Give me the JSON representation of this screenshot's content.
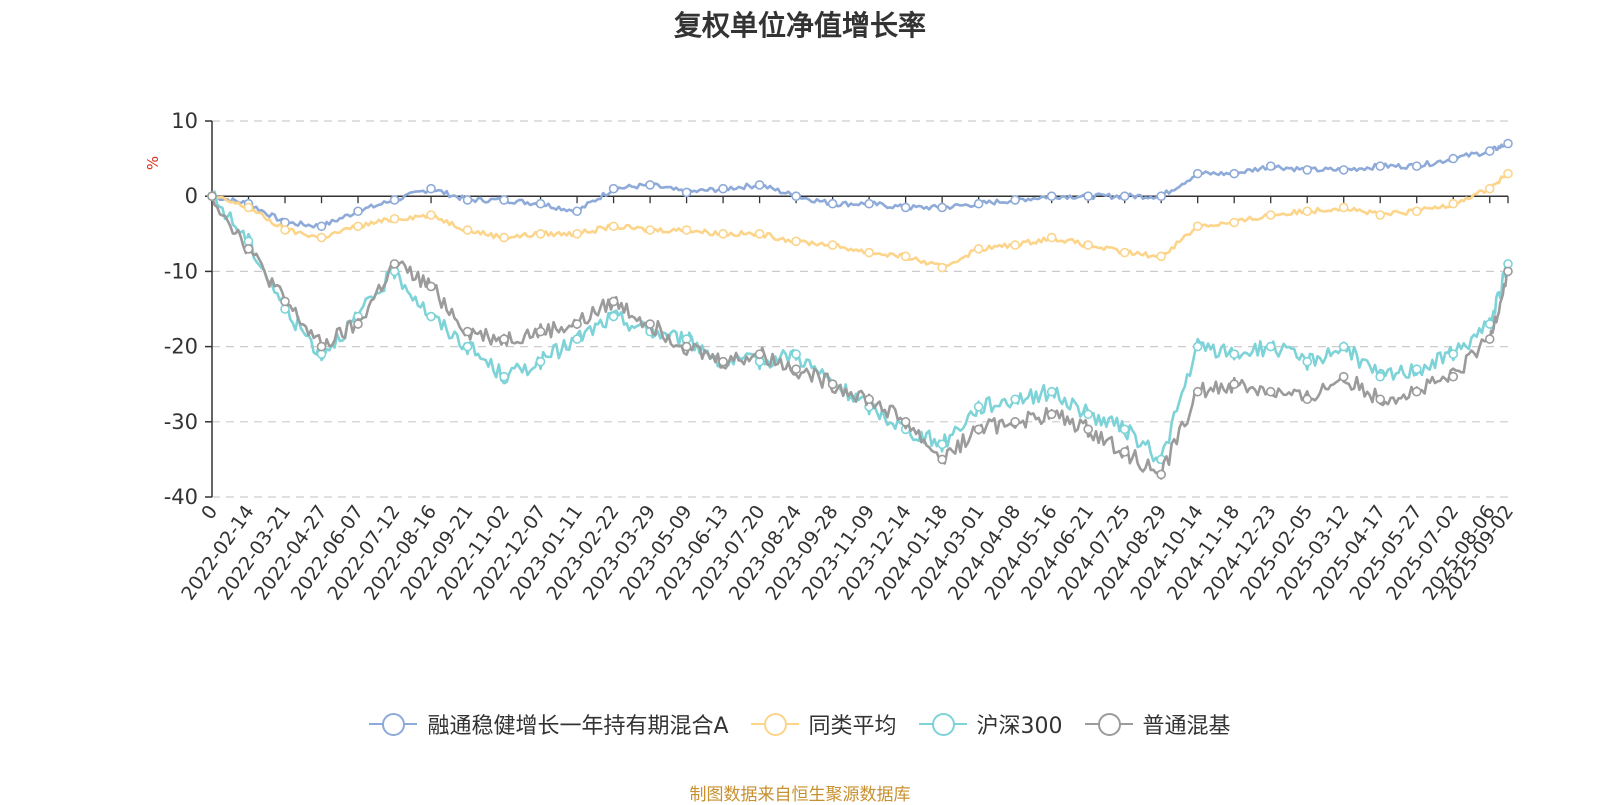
{
  "chart_data": {
    "type": "line",
    "title": "复权单位净值增长率",
    "ylabel": "%",
    "ylim": [
      -40,
      10
    ],
    "yticks": [
      10,
      0,
      -10,
      -20,
      -30,
      -40
    ],
    "xticks": [
      "0",
      "2022-02-14",
      "2022-03-21",
      "2022-04-27",
      "2022-06-07",
      "2022-07-12",
      "2022-08-16",
      "2022-09-21",
      "2022-11-02",
      "2022-12-07",
      "2023-01-11",
      "2023-02-22",
      "2023-03-29",
      "2023-05-09",
      "2023-06-13",
      "2023-07-20",
      "2023-08-24",
      "2023-09-28",
      "2023-11-09",
      "2023-12-14",
      "2024-01-18",
      "2024-03-01",
      "2024-04-08",
      "2024-05-16",
      "2024-06-21",
      "2024-07-25",
      "2024-08-29",
      "2024-10-14",
      "2024-11-18",
      "2024-12-23",
      "2025-02-05",
      "2025-03-12",
      "2025-04-17",
      "2025-05-27",
      "2025-07-02",
      "2025-08-06",
      "2025-09-02"
    ],
    "grid": true,
    "legend_position": "bottom",
    "x_positions": [
      0,
      1,
      2,
      3,
      4,
      5,
      6,
      7,
      8,
      9,
      10,
      11,
      12,
      13,
      14,
      15,
      16,
      17,
      18,
      19,
      20,
      21,
      22,
      23,
      24,
      25,
      26,
      27,
      28,
      29,
      30,
      31,
      32,
      33,
      34,
      35,
      35.5
    ],
    "series": [
      {
        "name": "融通稳健增长一年持有期混合A",
        "color": "#8eaad8",
        "values": [
          0,
          -1,
          -3.5,
          -4,
          -2,
          -0.5,
          1,
          -0.5,
          -0.5,
          -1,
          -2,
          1,
          1.5,
          0.5,
          1,
          1.5,
          0,
          -1,
          -1,
          -1.5,
          -1.5,
          -1,
          -0.5,
          0,
          0,
          0,
          0,
          3,
          3,
          4,
          3.5,
          3.5,
          4,
          4,
          5,
          6,
          7
        ]
      },
      {
        "name": "同类平均",
        "color": "#fcd48a",
        "values": [
          0,
          -1.5,
          -4.5,
          -5.5,
          -4,
          -3,
          -2.5,
          -4.5,
          -5.5,
          -5,
          -5,
          -4,
          -4.5,
          -4.5,
          -5,
          -5,
          -6,
          -6.5,
          -7.5,
          -8,
          -9.5,
          -7,
          -6.5,
          -5.5,
          -6.5,
          -7.5,
          -8,
          -4,
          -3.5,
          -2.5,
          -2,
          -1.5,
          -2.5,
          -2,
          -1,
          1,
          3
        ]
      },
      {
        "name": "沪深300",
        "color": "#7dd3d7",
        "values": [
          0,
          -6,
          -15,
          -21,
          -16,
          -10,
          -16,
          -20,
          -24,
          -22,
          -19,
          -16,
          -18,
          -19,
          -22,
          -22,
          -21,
          -25,
          -28,
          -31,
          -33,
          -28,
          -27,
          -26,
          -29,
          -31,
          -35,
          -20,
          -21,
          -20,
          -22,
          -20,
          -24,
          -23,
          -21,
          -17,
          -9
        ]
      },
      {
        "name": "普通混基",
        "color": "#9b9b9b",
        "values": [
          0,
          -7,
          -14,
          -20,
          -17,
          -9,
          -12,
          -18,
          -19,
          -18,
          -17,
          -14,
          -17,
          -20,
          -22,
          -21,
          -23,
          -25,
          -27,
          -30,
          -35,
          -31,
          -30,
          -29,
          -31,
          -34,
          -37,
          -26,
          -25,
          -26,
          -27,
          -24,
          -27,
          -26,
          -24,
          -19,
          -10
        ]
      }
    ]
  },
  "source_text": "制图数据来自恒生聚源数据库"
}
